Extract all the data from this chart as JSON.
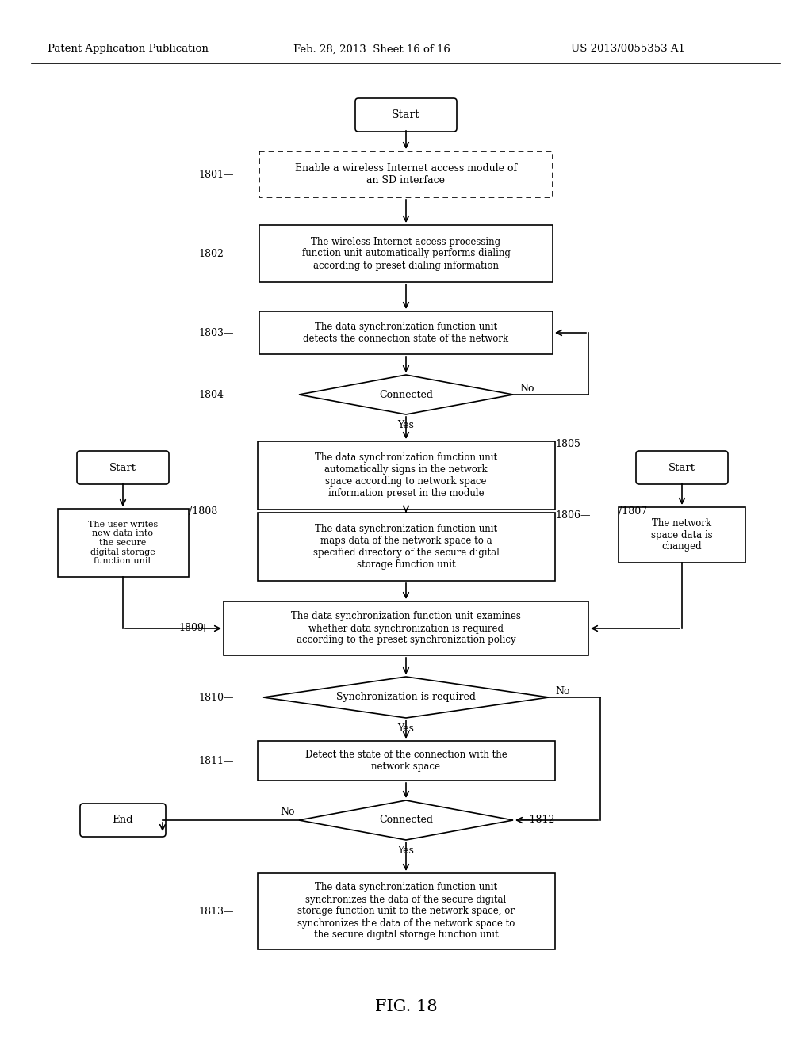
{
  "title_left": "Patent Application Publication",
  "title_mid": "Feb. 28, 2013  Sheet 16 of 16",
  "title_right": "US 2013/0055353 A1",
  "fig_label": "FIG. 18",
  "background": "#ffffff"
}
